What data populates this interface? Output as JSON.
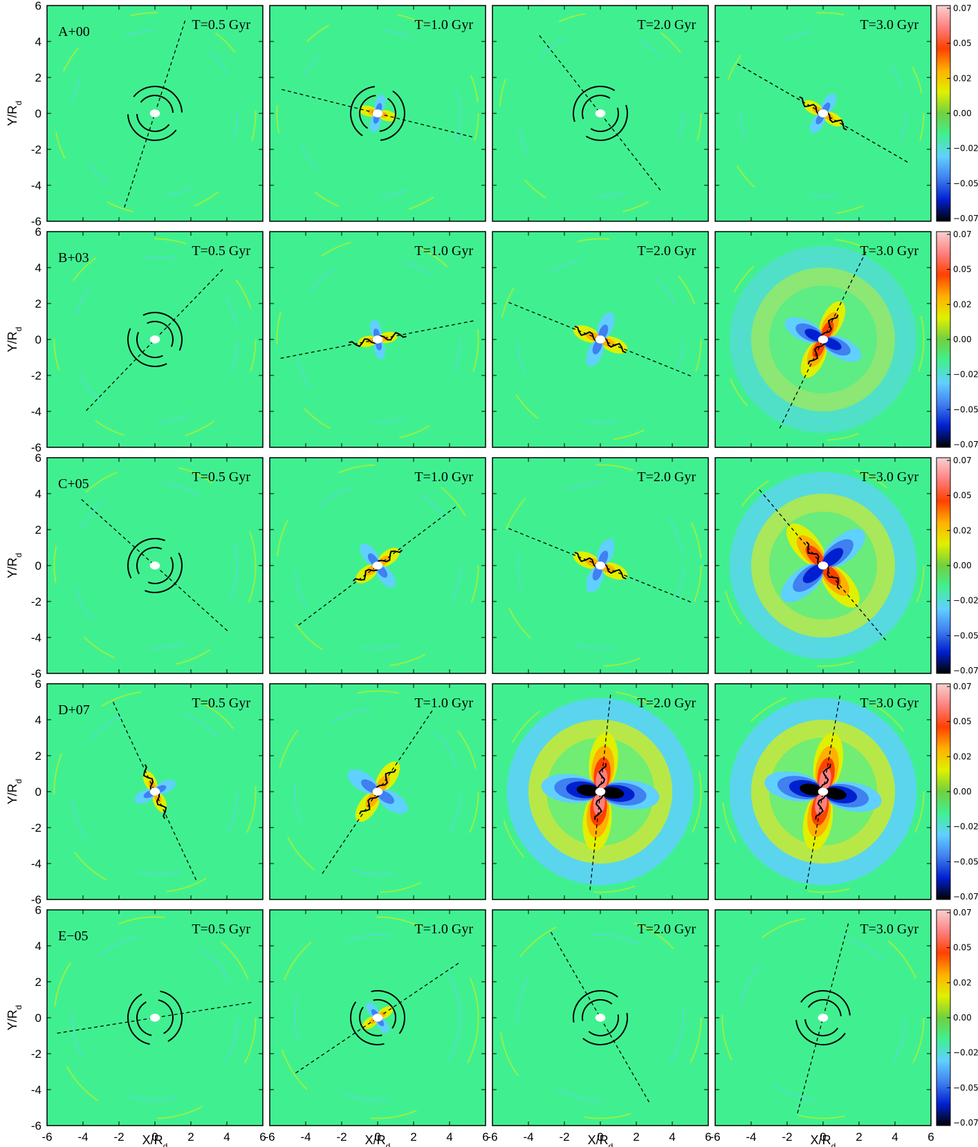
{
  "figure": {
    "ylabel": "Y/R",
    "ylabel_sub": "d",
    "xlabel": "X/R",
    "xlabel_sub": "d",
    "axis_ticks": [
      "-6",
      "-4",
      "-2",
      "0",
      "2",
      "4",
      "6"
    ],
    "colorbar_ticks": [
      "0.07",
      "0.05",
      "0.02",
      "0.00",
      "−0.02",
      "−0.05",
      "−0.07"
    ]
  },
  "chart_data": {
    "type": "heatmap",
    "xlim": [
      -6,
      6
    ],
    "ylim": [
      -6,
      6
    ],
    "colorbar_range": [
      -0.07,
      0.07
    ],
    "colormap": [
      "#000000",
      "#0020d0",
      "#4080f0",
      "#60d0ff",
      "#40f090",
      "#70d040",
      "#e0f000",
      "#ffb000",
      "#ff4000",
      "#ff8080",
      "#f8d0d0"
    ],
    "background_color": "#40f090",
    "rows": [
      {
        "id": "A+00",
        "panels": [
          {
            "time": "T=0.5 Gyr",
            "pattern": "arcs",
            "line_angle_deg": 72,
            "strength": 0
          },
          {
            "time": "T=1.0 Gyr",
            "pattern": "arcs",
            "line_angle_deg": -14,
            "strength": 0.08
          },
          {
            "time": "T=2.0 Gyr",
            "pattern": "arcs",
            "line_angle_deg": -52,
            "strength": 0
          },
          {
            "time": "T=3.0 Gyr",
            "pattern": "wiggle",
            "line_angle_deg": -30,
            "strength": 0.15
          }
        ]
      },
      {
        "id": "B+03",
        "panels": [
          {
            "time": "T=0.5 Gyr",
            "pattern": "arcs",
            "line_angle_deg": 46,
            "strength": 0
          },
          {
            "time": "T=1.0 Gyr",
            "pattern": "wiggle",
            "line_angle_deg": 11,
            "strength": 0.1
          },
          {
            "time": "T=2.0 Gyr",
            "pattern": "wiggle",
            "line_angle_deg": -22,
            "strength": 0.3
          },
          {
            "time": "T=3.0 Gyr",
            "pattern": "wiggle",
            "line_angle_deg": 64,
            "strength": 0.6
          }
        ]
      },
      {
        "id": "C+05",
        "panels": [
          {
            "time": "T=0.5 Gyr",
            "pattern": "arcs",
            "line_angle_deg": -42,
            "strength": 0
          },
          {
            "time": "T=1.0 Gyr",
            "pattern": "wiggle",
            "line_angle_deg": 37,
            "strength": 0.25
          },
          {
            "time": "T=2.0 Gyr",
            "pattern": "wiggle",
            "line_angle_deg": -22,
            "strength": 0.3
          },
          {
            "time": "T=3.0 Gyr",
            "pattern": "wiggle",
            "line_angle_deg": -50,
            "strength": 0.85
          }
        ]
      },
      {
        "id": "D+07",
        "panels": [
          {
            "time": "T=0.5 Gyr",
            "pattern": "wiggle",
            "line_angle_deg": -65,
            "strength": 0.15
          },
          {
            "time": "T=1.0 Gyr",
            "pattern": "wiggle",
            "line_angle_deg": 56,
            "strength": 0.45
          },
          {
            "time": "T=2.0 Gyr",
            "pattern": "wiggle",
            "line_angle_deg": 84,
            "strength": 1.0
          },
          {
            "time": "T=3.0 Gyr",
            "pattern": "wiggle",
            "line_angle_deg": 80,
            "strength": 1.0
          }
        ]
      },
      {
        "id": "E−05",
        "panels": [
          {
            "time": "T=0.5 Gyr",
            "pattern": "arcs",
            "line_angle_deg": 9,
            "strength": 0
          },
          {
            "time": "T=1.0 Gyr",
            "pattern": "arcs",
            "line_angle_deg": 34,
            "strength": 0.05
          },
          {
            "time": "T=2.0 Gyr",
            "pattern": "arcs",
            "line_angle_deg": -60,
            "strength": 0
          },
          {
            "time": "T=3.0 Gyr",
            "pattern": "arcs",
            "line_angle_deg": 75,
            "strength": 0
          }
        ]
      }
    ]
  }
}
